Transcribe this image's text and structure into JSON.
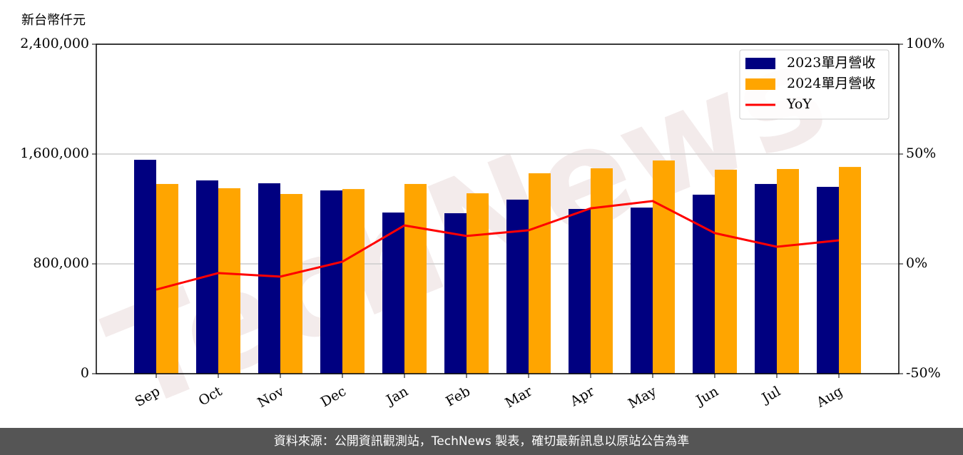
{
  "chart_data": {
    "type": "bar",
    "y_label": "新台幣仟元",
    "categories": [
      "Sep",
      "Oct",
      "Nov",
      "Dec",
      "Jan",
      "Feb",
      "Mar",
      "Apr",
      "May",
      "Jun",
      "Jul",
      "Aug"
    ],
    "series": [
      {
        "name": "2023單月營收",
        "color": "#000080",
        "values": [
          1558000,
          1408000,
          1387000,
          1335000,
          1174000,
          1169000,
          1268000,
          1200000,
          1210000,
          1304000,
          1382000,
          1361000
        ]
      },
      {
        "name": "2024單月營收",
        "color": "#ffa500",
        "values": [
          1382000,
          1351000,
          1309000,
          1345000,
          1382000,
          1314000,
          1460000,
          1496000,
          1553000,
          1486000,
          1491000,
          1506000
        ]
      },
      {
        "name": "YoY",
        "color": "#ff0000",
        "type": "line",
        "axis": "y2",
        "values": [
          -11.7,
          -4.2,
          -5.8,
          1.0,
          17.5,
          12.7,
          15.3,
          25.3,
          28.6,
          14.0,
          7.8,
          10.7
        ]
      }
    ],
    "ylim": [
      0,
      2400000
    ],
    "yticks": [
      0,
      {
        "value": 800000,
        "label": "800,000"
      },
      {
        "value": 1600000,
        "label": "1,600,000"
      },
      {
        "value": 2400000,
        "label": "2,400,000"
      }
    ],
    "y2lim": [
      -50,
      100
    ],
    "y2ticks": [
      {
        "value": -50,
        "label": "-50%"
      },
      {
        "value": 0,
        "label": "0%"
      },
      {
        "value": 50,
        "label": "50%"
      },
      {
        "value": 100,
        "label": "100%"
      }
    ],
    "grid": true,
    "legend": "upper right",
    "watermark": "TechNews",
    "footer": "資料來源：公開資訊觀測站，TechNews 製表，確切最新訊息以原站公告為準"
  }
}
